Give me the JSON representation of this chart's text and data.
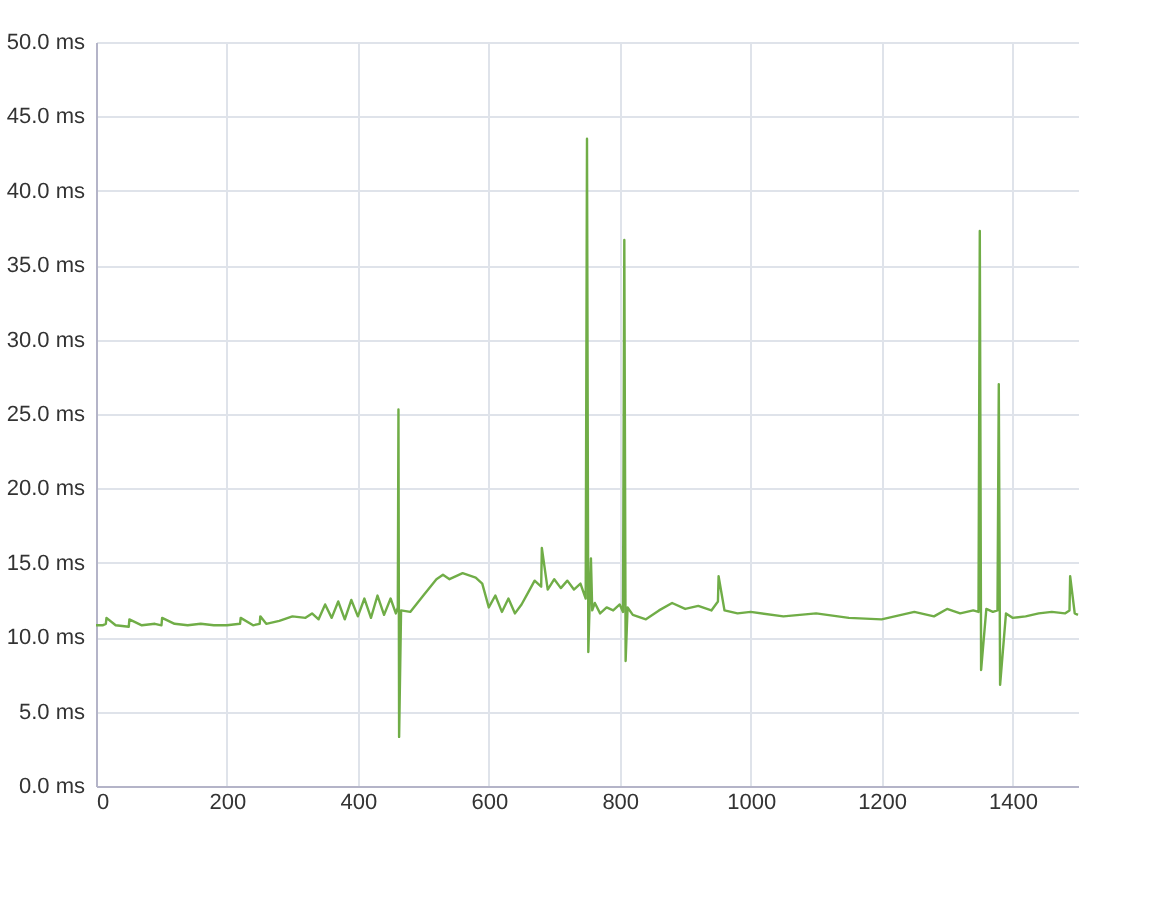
{
  "chart_data": {
    "type": "line",
    "x": [
      0,
      10,
      15,
      16,
      30,
      50,
      51,
      70,
      90,
      100,
      101,
      120,
      140,
      160,
      180,
      200,
      220,
      221,
      240,
      250,
      251,
      260,
      280,
      300,
      320,
      330,
      340,
      350,
      360,
      370,
      380,
      390,
      400,
      410,
      420,
      430,
      440,
      450,
      458,
      461,
      462,
      463,
      466,
      480,
      500,
      520,
      530,
      540,
      560,
      580,
      590,
      600,
      610,
      620,
      630,
      640,
      650,
      660,
      670,
      680,
      681,
      690,
      700,
      710,
      720,
      730,
      740,
      748,
      750,
      752,
      756,
      758,
      762,
      770,
      780,
      790,
      800,
      805,
      807,
      809,
      812,
      820,
      840,
      860,
      880,
      900,
      920,
      940,
      950,
      951,
      960,
      980,
      1000,
      1050,
      1100,
      1150,
      1200,
      1220,
      1250,
      1280,
      1300,
      1320,
      1340,
      1348,
      1350,
      1352,
      1360,
      1370,
      1377,
      1379,
      1381,
      1390,
      1400,
      1420,
      1440,
      1460,
      1480,
      1487,
      1488,
      1495,
      1500
    ],
    "series": [
      {
        "color": "#70ad47",
        "values": [
          10.8,
          10.8,
          10.9,
          11.3,
          10.8,
          10.7,
          11.2,
          10.8,
          10.9,
          10.8,
          11.3,
          10.9,
          10.8,
          10.9,
          10.8,
          10.8,
          10.9,
          11.3,
          10.8,
          10.9,
          11.4,
          10.9,
          11.1,
          11.4,
          11.3,
          11.6,
          11.2,
          12.2,
          11.3,
          12.4,
          11.2,
          12.5,
          11.4,
          12.6,
          11.3,
          12.8,
          11.5,
          12.6,
          11.6,
          12.0,
          25.3,
          3.3,
          11.8,
          11.7,
          12.8,
          13.9,
          14.2,
          13.9,
          14.3,
          14.0,
          13.6,
          12.0,
          12.8,
          11.7,
          12.6,
          11.6,
          12.2,
          13.0,
          13.8,
          13.4,
          16.0,
          13.2,
          13.9,
          13.3,
          13.8,
          13.2,
          13.6,
          12.6,
          43.5,
          9.0,
          15.3,
          11.8,
          12.3,
          11.6,
          12.0,
          11.8,
          12.2,
          11.7,
          36.7,
          8.4,
          12.0,
          11.5,
          11.2,
          11.8,
          12.3,
          11.9,
          12.1,
          11.8,
          12.4,
          14.1,
          11.8,
          11.6,
          11.7,
          11.4,
          11.6,
          11.3,
          11.2,
          11.4,
          11.7,
          11.4,
          11.9,
          11.6,
          11.8,
          11.7,
          37.3,
          7.8,
          11.9,
          11.7,
          11.8,
          27.0,
          6.8,
          11.6,
          11.3,
          11.4,
          11.6,
          11.7,
          11.6,
          11.8,
          14.1,
          11.6,
          11.5
        ]
      }
    ],
    "xlim": [
      0,
      1500
    ],
    "xticks": [
      0,
      200,
      400,
      600,
      800,
      1000,
      1200,
      1400
    ],
    "ylim": [
      0,
      50
    ],
    "yticks": [
      {
        "value": 0,
        "label": "0.0 ms"
      },
      {
        "value": 5,
        "label": "5.0 ms"
      },
      {
        "value": 10,
        "label": "10.0 ms"
      },
      {
        "value": 15,
        "label": "15.0 ms"
      },
      {
        "value": 20,
        "label": "20.0 ms"
      },
      {
        "value": 25,
        "label": "25.0 ms"
      },
      {
        "value": 30,
        "label": "30.0 ms"
      },
      {
        "value": 35,
        "label": "35.0 ms"
      },
      {
        "value": 40,
        "label": "40.0 ms"
      },
      {
        "value": 45,
        "label": "45.0 ms"
      },
      {
        "value": 50,
        "label": "50.0 ms"
      }
    ],
    "grid": true,
    "marker": "none",
    "line_style": "solid"
  }
}
